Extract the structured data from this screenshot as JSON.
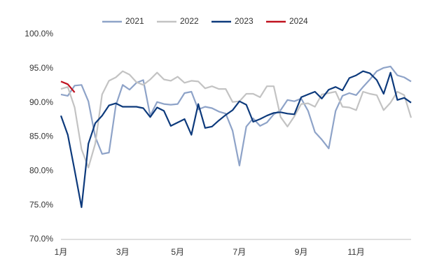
{
  "chart_data": {
    "type": "line",
    "categories": [
      "1月",
      null,
      null,
      null,
      null,
      null,
      null,
      null,
      null,
      "3月",
      null,
      null,
      null,
      null,
      null,
      null,
      null,
      "5月",
      null,
      null,
      null,
      null,
      null,
      null,
      null,
      null,
      "7月",
      null,
      null,
      null,
      null,
      null,
      null,
      null,
      null,
      "9月",
      null,
      null,
      null,
      null,
      null,
      null,
      null,
      "11月",
      null,
      null,
      null,
      null,
      null,
      null,
      null,
      null
    ],
    "series": [
      {
        "name": "2021",
        "color": "#8ea3c8",
        "values": [
          91.2,
          91.0,
          92.5,
          92.6,
          90.2,
          85.0,
          82.5,
          82.7,
          89.6,
          92.6,
          91.9,
          92.9,
          93.3,
          88.1,
          90.1,
          89.8,
          89.7,
          89.8,
          91.4,
          91.6,
          89.0,
          89.4,
          89.2,
          88.7,
          88.4,
          85.9,
          80.8,
          86.5,
          87.7,
          86.6,
          87.1,
          88.3,
          88.9,
          90.4,
          90.2,
          90.6,
          88.8,
          85.7,
          84.6,
          83.3,
          88.8,
          91.0,
          91.4,
          91.1,
          92.3,
          93.4,
          94.6,
          95.1,
          95.3,
          94.0,
          93.7,
          93.1
        ]
      },
      {
        "name": "2022",
        "color": "#c3c3c3",
        "values": [
          92.0,
          92.3,
          89.3,
          83.2,
          80.5,
          84.0,
          91.2,
          93.2,
          93.7,
          94.6,
          94.1,
          93.0,
          92.6,
          93.4,
          94.4,
          93.4,
          93.2,
          93.8,
          92.9,
          93.2,
          93.1,
          92.1,
          92.4,
          92.0,
          92.0,
          90.1,
          90.2,
          91.3,
          91.3,
          90.8,
          92.4,
          92.4,
          87.9,
          86.5,
          88.0,
          89.8,
          89.9,
          89.4,
          91.2,
          91.4,
          91.6,
          89.4,
          89.3,
          88.9,
          91.6,
          91.3,
          91.1,
          88.9,
          90.0,
          91.6,
          91.1,
          87.8
        ]
      },
      {
        "name": "2023",
        "color": "#0d3a7c",
        "values": [
          88.1,
          85.3,
          80.1,
          74.7,
          84.0,
          87.0,
          88.1,
          89.6,
          89.9,
          89.4,
          89.4,
          89.4,
          89.2,
          87.9,
          89.3,
          88.8,
          86.6,
          87.1,
          87.6,
          85.3,
          89.8,
          86.3,
          86.5,
          87.4,
          88.2,
          88.9,
          90.2,
          89.7,
          87.2,
          87.6,
          88.1,
          88.5,
          88.6,
          88.4,
          88.3,
          90.8,
          91.2,
          91.6,
          90.6,
          91.9,
          92.3,
          91.8,
          93.6,
          94.0,
          94.6,
          94.3,
          93.3,
          91.3,
          94.4,
          90.4,
          90.7,
          90.0
        ]
      },
      {
        "name": "2024",
        "color": "#c0121f",
        "values": [
          93.1,
          92.7,
          91.5,
          null,
          null,
          null,
          null,
          null,
          null,
          null,
          null,
          null,
          null,
          null,
          null,
          null,
          null,
          null,
          null,
          null,
          null,
          null,
          null,
          null,
          null,
          null,
          null,
          null,
          null,
          null,
          null,
          null,
          null,
          null,
          null,
          null,
          null,
          null,
          null,
          null,
          null,
          null,
          null,
          null,
          null,
          null,
          null,
          null,
          null,
          null,
          null,
          null
        ]
      }
    ],
    "ylim": [
      70,
      100
    ],
    "yticks": [
      {
        "value": 70,
        "label": "70.0%"
      },
      {
        "value": 75,
        "label": "75.0%"
      },
      {
        "value": 80,
        "label": "80.0%"
      },
      {
        "value": 85,
        "label": "85.0%"
      },
      {
        "value": 90,
        "label": "90.0%"
      },
      {
        "value": 95,
        "label": "95.0%"
      },
      {
        "value": 100,
        "label": "100.0%"
      }
    ],
    "legend": "top"
  }
}
